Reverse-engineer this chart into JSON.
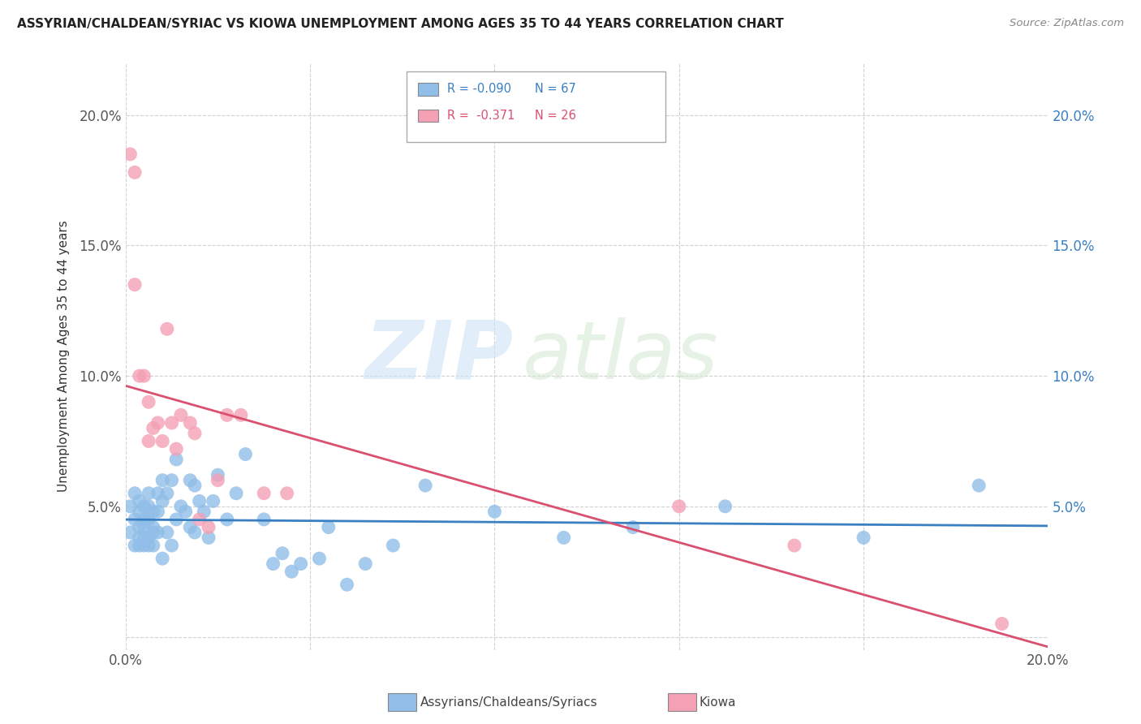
{
  "title": "ASSYRIAN/CHALDEAN/SYRIAC VS KIOWA UNEMPLOYMENT AMONG AGES 35 TO 44 YEARS CORRELATION CHART",
  "source": "Source: ZipAtlas.com",
  "ylabel": "Unemployment Among Ages 35 to 44 years",
  "xlim": [
    0.0,
    0.2
  ],
  "ylim": [
    -0.005,
    0.22
  ],
  "x_ticks": [
    0.0,
    0.04,
    0.08,
    0.12,
    0.16,
    0.2
  ],
  "y_ticks": [
    0.0,
    0.05,
    0.1,
    0.15,
    0.2
  ],
  "legend_labels": [
    "Assyrians/Chaldeans/Syriacs",
    "Kiowa"
  ],
  "blue_color": "#90BEE8",
  "pink_color": "#F4A0B5",
  "blue_line_color": "#3A7FC1",
  "pink_line_color": "#D95070",
  "right_tick_color": "#3A7FC1",
  "R_blue": -0.09,
  "N_blue": 67,
  "R_pink": -0.371,
  "N_pink": 26,
  "watermark_zip": "ZIP",
  "watermark_atlas": "atlas",
  "blue_x": [
    0.001,
    0.001,
    0.002,
    0.002,
    0.002,
    0.003,
    0.003,
    0.003,
    0.003,
    0.003,
    0.004,
    0.004,
    0.004,
    0.004,
    0.004,
    0.005,
    0.005,
    0.005,
    0.005,
    0.005,
    0.006,
    0.006,
    0.006,
    0.006,
    0.007,
    0.007,
    0.007,
    0.008,
    0.008,
    0.008,
    0.009,
    0.009,
    0.01,
    0.01,
    0.011,
    0.011,
    0.012,
    0.013,
    0.014,
    0.014,
    0.015,
    0.015,
    0.016,
    0.017,
    0.018,
    0.019,
    0.02,
    0.022,
    0.024,
    0.026,
    0.03,
    0.032,
    0.034,
    0.036,
    0.038,
    0.042,
    0.044,
    0.048,
    0.052,
    0.058,
    0.065,
    0.08,
    0.095,
    0.11,
    0.13,
    0.16,
    0.185
  ],
  "blue_y": [
    0.04,
    0.05,
    0.045,
    0.035,
    0.055,
    0.038,
    0.042,
    0.048,
    0.035,
    0.052,
    0.038,
    0.045,
    0.05,
    0.035,
    0.042,
    0.038,
    0.045,
    0.05,
    0.035,
    0.055,
    0.042,
    0.035,
    0.048,
    0.04,
    0.055,
    0.04,
    0.048,
    0.052,
    0.03,
    0.06,
    0.055,
    0.04,
    0.06,
    0.035,
    0.068,
    0.045,
    0.05,
    0.048,
    0.06,
    0.042,
    0.058,
    0.04,
    0.052,
    0.048,
    0.038,
    0.052,
    0.062,
    0.045,
    0.055,
    0.07,
    0.045,
    0.028,
    0.032,
    0.025,
    0.028,
    0.03,
    0.042,
    0.02,
    0.028,
    0.035,
    0.058,
    0.048,
    0.038,
    0.042,
    0.05,
    0.038,
    0.058
  ],
  "pink_x": [
    0.001,
    0.002,
    0.002,
    0.003,
    0.004,
    0.005,
    0.005,
    0.006,
    0.007,
    0.008,
    0.009,
    0.01,
    0.011,
    0.012,
    0.014,
    0.015,
    0.016,
    0.018,
    0.02,
    0.022,
    0.025,
    0.03,
    0.035,
    0.12,
    0.145,
    0.19
  ],
  "pink_y": [
    0.185,
    0.178,
    0.135,
    0.1,
    0.1,
    0.09,
    0.075,
    0.08,
    0.082,
    0.075,
    0.118,
    0.082,
    0.072,
    0.085,
    0.082,
    0.078,
    0.045,
    0.042,
    0.06,
    0.085,
    0.085,
    0.055,
    0.055,
    0.05,
    0.035,
    0.005
  ]
}
